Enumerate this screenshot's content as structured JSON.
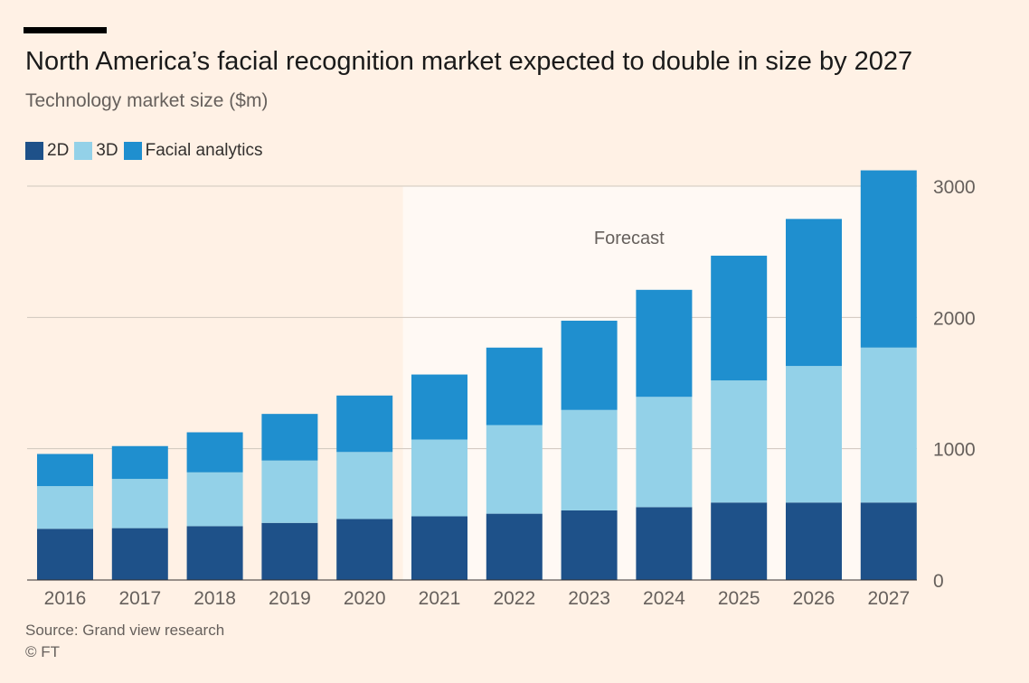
{
  "title": "North America’s facial recognition market expected to double in size by 2027",
  "subtitle": "Technology market size ($m)",
  "forecast_label": "Forecast",
  "source": "Source: Grand view research",
  "copyright": "© FT",
  "colors": {
    "background": "#FFF1E5",
    "forecast_band": "#FFF9F4",
    "2D": "#1E5189",
    "3D": "#93D1E8",
    "Facial analytics": "#1F8FCF",
    "gridline": "#CFC6BD",
    "axis_text": "#66605c"
  },
  "chart_data": {
    "type": "bar",
    "stacked": true,
    "categories": [
      "2016",
      "2017",
      "2018",
      "2019",
      "2020",
      "2021",
      "2022",
      "2023",
      "2024",
      "2025",
      "2026",
      "2027"
    ],
    "series": [
      {
        "name": "2D",
        "values": [
          390,
          395,
          410,
          435,
          465,
          485,
          505,
          530,
          555,
          590,
          590,
          590
        ]
      },
      {
        "name": "3D",
        "values": [
          325,
          375,
          410,
          475,
          510,
          585,
          675,
          765,
          840,
          930,
          1040,
          1180
        ]
      },
      {
        "name": "Facial analytics",
        "values": [
          245,
          250,
          305,
          355,
          430,
          495,
          590,
          680,
          815,
          950,
          1120,
          1350
        ]
      }
    ],
    "ylim": [
      0,
      3000
    ],
    "yticks": [
      0,
      1000,
      2000,
      3000
    ],
    "y_axis_side": "right",
    "grid": true,
    "legend_position": "top-left",
    "forecast_from": "2021"
  }
}
